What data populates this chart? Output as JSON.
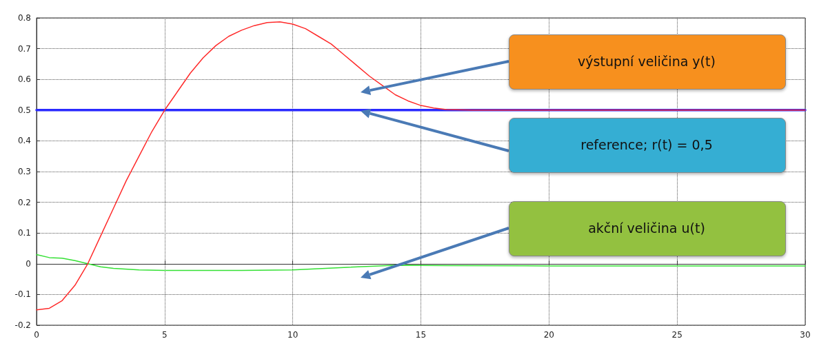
{
  "chart_data": {
    "type": "line",
    "series": [
      {
        "color": "#2a2aff",
        "x": [
          0,
          30
        ],
        "values": [
          0.5,
          0.5
        ]
      },
      {
        "color": "#33e033",
        "x": [
          0,
          0.5,
          1,
          1.5,
          2,
          2.5,
          3,
          4,
          5,
          6,
          8,
          10,
          12,
          14,
          16,
          20,
          25,
          30
        ],
        "values": [
          0.03,
          0.02,
          0.018,
          0.01,
          0.0,
          -0.01,
          -0.015,
          -0.02,
          -0.022,
          -0.022,
          -0.022,
          -0.02,
          -0.012,
          -0.005,
          -0.006,
          -0.007,
          -0.007,
          -0.007
        ]
      },
      {
        "color": "#ff2a2a",
        "x": [
          0,
          0.5,
          1,
          1.5,
          2,
          2.5,
          3,
          3.5,
          4,
          4.5,
          5,
          5.5,
          6,
          6.5,
          7,
          7.5,
          8,
          8.5,
          9,
          9.5,
          10,
          10.5,
          11,
          11.5,
          12,
          12.5,
          13,
          13.5,
          14,
          14.5,
          15,
          15.5,
          16,
          17,
          18,
          20,
          25,
          30
        ],
        "values": [
          -0.15,
          -0.145,
          -0.12,
          -0.07,
          0.0,
          0.09,
          0.18,
          0.27,
          0.35,
          0.43,
          0.5,
          0.56,
          0.62,
          0.67,
          0.71,
          0.74,
          0.76,
          0.775,
          0.785,
          0.787,
          0.78,
          0.765,
          0.74,
          0.715,
          0.68,
          0.645,
          0.61,
          0.58,
          0.55,
          0.53,
          0.515,
          0.507,
          0.502,
          0.5,
          0.5,
          0.5,
          0.5,
          0.5
        ]
      }
    ],
    "xlim": [
      0,
      30
    ],
    "xticks": [
      0,
      5,
      10,
      15,
      20,
      25,
      30
    ],
    "ylim": [
      -0.2,
      0.8
    ],
    "yticks": [
      -0.2,
      -0.1,
      0,
      0.1,
      0.2,
      0.3,
      0.4,
      0.5,
      0.6,
      0.7,
      0.8
    ],
    "grid": true,
    "marker": "none",
    "line_style": "solid",
    "annotations": [
      "výstupní veličina y(t)",
      "reference; r(t) = 0,5",
      "akční veličina u(t)"
    ]
  }
}
